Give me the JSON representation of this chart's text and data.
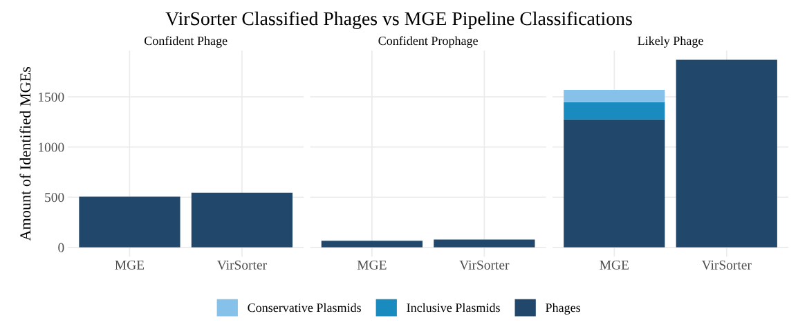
{
  "chart_data": [
    {
      "type": "bar",
      "title": "Confident Phage",
      "annotations": [
        "VirSorter Classified Phages vs MGE Pipeline Classifications"
      ],
      "ylabel": "Amount of Identified MGEs",
      "categories": [
        "MGE",
        "VirSorter"
      ],
      "stacked": true,
      "ylim": [
        -93,
        1960
      ],
      "yticks": [
        0,
        500,
        1000,
        1500
      ],
      "grid": true,
      "legend": "bottom",
      "series": [
        {
          "name": "Phages",
          "color": "#21476b",
          "values": [
            505,
            545
          ]
        },
        {
          "name": "Inclusive Plasmids",
          "color": "#1a8bbf",
          "values": [
            null,
            null
          ]
        },
        {
          "name": "Conservative Plasmids",
          "color": "#85c1e9",
          "values": [
            null,
            null
          ]
        }
      ]
    },
    {
      "type": "bar",
      "title": "Confident Prophage",
      "categories": [
        "MGE",
        "VirSorter"
      ],
      "stacked": true,
      "ylim": [
        -93,
        1960
      ],
      "yticks": [
        0,
        500,
        1000,
        1500
      ],
      "grid": true,
      "tick_labels": "x",
      "series": [
        {
          "color": "#21476b",
          "values": [
            66,
            78
          ]
        }
      ]
    },
    {
      "type": "bar",
      "title": "Likely Phage",
      "categories": [
        "MGE",
        "VirSorter"
      ],
      "stacked": true,
      "ylim": [
        -93,
        1960
      ],
      "yticks": [
        0,
        500,
        1000,
        1500
      ],
      "grid": true,
      "tick_labels": "x",
      "series": [
        {
          "color": "#21476b",
          "values": [
            1275,
            1870
          ]
        },
        {
          "color": "#1a8bbf",
          "values": [
            172,
            null
          ]
        },
        {
          "color": "#85c1e9",
          "values": [
            122,
            null
          ]
        }
      ]
    }
  ]
}
